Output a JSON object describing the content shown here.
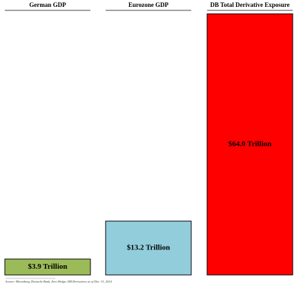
{
  "chart_data": {
    "type": "bar",
    "categories": [
      "German GDP",
      "Eurozone GDP",
      "DB Total Derivative Exposure"
    ],
    "values": [
      3.9,
      13.2,
      64.0
    ],
    "value_labels": [
      "$3.9 Trillion",
      "$13.2 Trillion",
      "$64.0 Trillion"
    ],
    "colors": [
      "#9bbb59",
      "#92cddc",
      "#ff0000"
    ],
    "source": "Source: Bloomberg, Deutsche Bank, Zero Hedge, DB Derivatives as of  Dec. 31, 2014"
  }
}
